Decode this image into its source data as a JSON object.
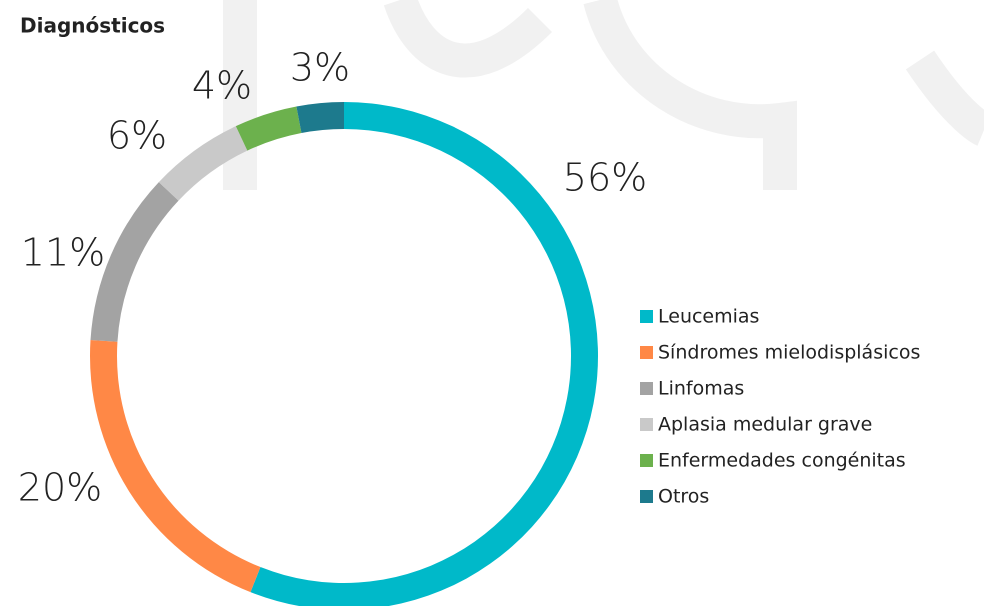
{
  "chart_data": {
    "type": "donut",
    "title": "Diagnósticos",
    "categories": [
      "Leucemias",
      "Síndromes mielodisplásicos",
      "Linfomas",
      "Aplasia medular grave",
      "Enfermedades congénitas",
      "Otros"
    ],
    "values": [
      56,
      20,
      11,
      6,
      4,
      3
    ],
    "value_labels": [
      "56%",
      "20%",
      "11%",
      "6%",
      "4%",
      "3%"
    ],
    "colors": [
      "#00b9c9",
      "#ff8846",
      "#a3a3a3",
      "#c9c9c9",
      "#6cb14d",
      "#1d7a8d"
    ],
    "legend": "right"
  }
}
